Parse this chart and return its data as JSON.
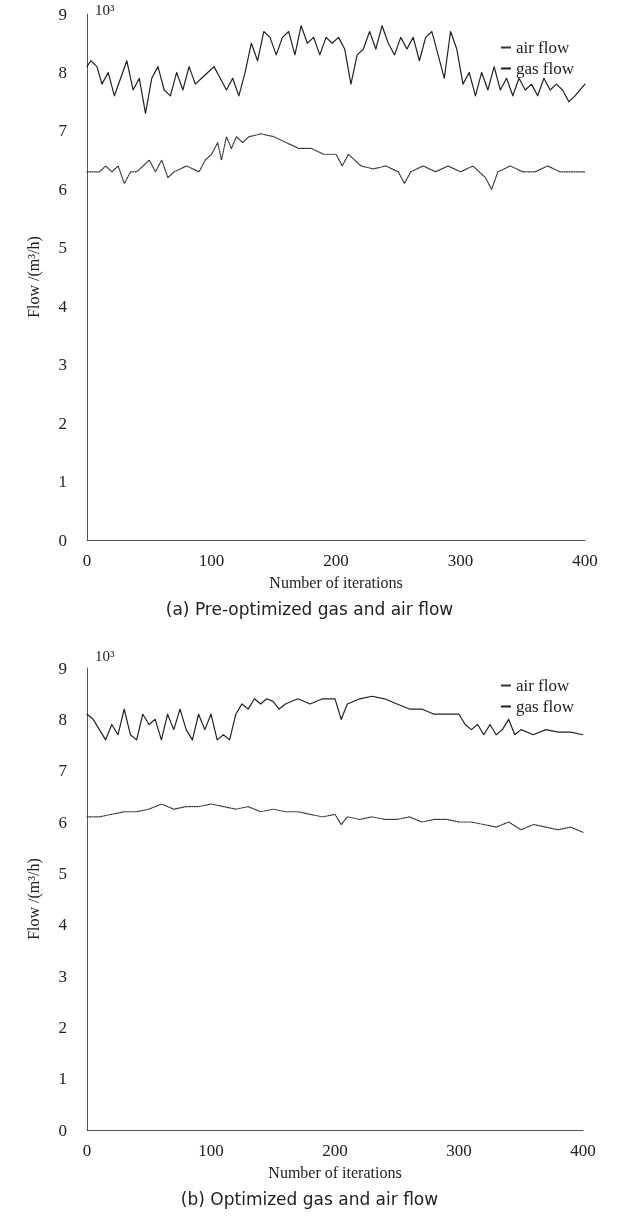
{
  "chart_data": [
    {
      "type": "line",
      "title": "(a) Pre-optimized gas and air flow",
      "xlabel": "Number of iterations",
      "ylabel": "Flow /(m³/h)",
      "annotations": [
        "10³"
      ],
      "xlim": [
        0,
        400
      ],
      "xticks": [
        0,
        100,
        200,
        300,
        400
      ],
      "ylim": [
        0,
        9
      ],
      "yticks": [
        0,
        1,
        2,
        3,
        4,
        5,
        6,
        7,
        8,
        9
      ],
      "grid": false,
      "legend": "top right",
      "marker": "none",
      "series": [
        {
          "name": "air flow",
          "color": "#333333",
          "line_style": "dotted",
          "x": [
            0,
            10,
            15,
            20,
            25,
            30,
            35,
            40,
            45,
            50,
            55,
            60,
            65,
            70,
            80,
            90,
            95,
            100,
            105,
            108,
            112,
            116,
            120,
            125,
            130,
            140,
            150,
            160,
            170,
            180,
            190,
            200,
            205,
            210,
            220,
            230,
            240,
            250,
            255,
            260,
            270,
            280,
            290,
            300,
            310,
            320,
            325,
            330,
            340,
            350,
            360,
            370,
            380,
            390,
            400
          ],
          "values": [
            6.3,
            6.3,
            6.4,
            6.3,
            6.4,
            6.1,
            6.3,
            6.3,
            6.4,
            6.5,
            6.3,
            6.5,
            6.2,
            6.3,
            6.4,
            6.3,
            6.5,
            6.6,
            6.8,
            6.5,
            6.9,
            6.7,
            6.9,
            6.8,
            6.9,
            6.95,
            6.9,
            6.8,
            6.7,
            6.7,
            6.6,
            6.6,
            6.4,
            6.6,
            6.4,
            6.35,
            6.4,
            6.3,
            6.1,
            6.3,
            6.4,
            6.3,
            6.4,
            6.3,
            6.4,
            6.2,
            6.0,
            6.3,
            6.4,
            6.3,
            6.3,
            6.4,
            6.3,
            6.3,
            6.3
          ]
        },
        {
          "name": "gas flow",
          "color": "#222222",
          "line_style": "solid",
          "x": [
            0,
            3,
            8,
            12,
            17,
            22,
            27,
            32,
            37,
            42,
            47,
            52,
            57,
            62,
            67,
            72,
            77,
            82,
            87,
            92,
            97,
            102,
            107,
            112,
            117,
            122,
            127,
            132,
            137,
            142,
            147,
            152,
            157,
            162,
            167,
            172,
            177,
            182,
            187,
            192,
            197,
            202,
            207,
            212,
            217,
            222,
            227,
            232,
            237,
            242,
            247,
            252,
            257,
            262,
            267,
            272,
            277,
            282,
            287,
            292,
            297,
            302,
            307,
            312,
            317,
            322,
            327,
            332,
            337,
            342,
            347,
            352,
            357,
            362,
            367,
            372,
            377,
            382,
            387,
            392,
            396,
            400
          ],
          "values": [
            8.1,
            8.2,
            8.1,
            7.8,
            8.0,
            7.6,
            7.9,
            8.2,
            7.7,
            7.9,
            7.3,
            7.9,
            8.1,
            7.7,
            7.6,
            8.0,
            7.7,
            8.1,
            7.8,
            7.9,
            8.0,
            8.1,
            7.9,
            7.7,
            7.9,
            7.6,
            8.0,
            8.5,
            8.2,
            8.7,
            8.6,
            8.3,
            8.6,
            8.7,
            8.3,
            8.8,
            8.5,
            8.6,
            8.3,
            8.6,
            8.5,
            8.6,
            8.4,
            7.8,
            8.3,
            8.4,
            8.7,
            8.4,
            8.8,
            8.5,
            8.3,
            8.6,
            8.4,
            8.6,
            8.2,
            8.6,
            8.7,
            8.3,
            7.9,
            8.7,
            8.4,
            7.8,
            8.0,
            7.6,
            8.0,
            7.7,
            8.1,
            7.7,
            7.9,
            7.6,
            7.9,
            7.7,
            7.8,
            7.6,
            7.9,
            7.7,
            7.8,
            7.7,
            7.5,
            7.6,
            7.7,
            7.8
          ]
        }
      ]
    },
    {
      "type": "line",
      "title": "(b) Optimized gas and air flow",
      "xlabel": "Number of iterations",
      "ylabel": "Flow /(m³/h)",
      "annotations": [
        "10³"
      ],
      "xlim": [
        0,
        400
      ],
      "xticks": [
        0,
        100,
        200,
        300,
        400
      ],
      "ylim": [
        0,
        9
      ],
      "yticks": [
        0,
        1,
        2,
        3,
        4,
        5,
        6,
        7,
        8,
        9
      ],
      "grid": false,
      "legend": "top right",
      "marker": "none",
      "series": [
        {
          "name": "air flow",
          "color": "#333333",
          "line_style": "dotted",
          "x": [
            0,
            10,
            20,
            30,
            40,
            50,
            60,
            70,
            80,
            90,
            100,
            110,
            120,
            130,
            140,
            150,
            160,
            170,
            180,
            190,
            200,
            205,
            210,
            220,
            230,
            240,
            250,
            260,
            270,
            280,
            290,
            300,
            310,
            320,
            330,
            340,
            350,
            360,
            370,
            380,
            390,
            400
          ],
          "values": [
            6.1,
            6.1,
            6.15,
            6.2,
            6.2,
            6.25,
            6.35,
            6.25,
            6.3,
            6.3,
            6.35,
            6.3,
            6.25,
            6.3,
            6.2,
            6.25,
            6.2,
            6.2,
            6.15,
            6.1,
            6.15,
            5.95,
            6.1,
            6.05,
            6.1,
            6.05,
            6.05,
            6.1,
            6.0,
            6.05,
            6.05,
            6.0,
            6.0,
            5.95,
            5.9,
            6.0,
            5.85,
            5.95,
            5.9,
            5.85,
            5.9,
            5.8
          ]
        },
        {
          "name": "gas flow",
          "color": "#222222",
          "line_style": "solid",
          "x": [
            0,
            5,
            10,
            15,
            20,
            25,
            30,
            35,
            40,
            45,
            50,
            55,
            60,
            65,
            70,
            75,
            80,
            85,
            90,
            95,
            100,
            105,
            110,
            115,
            120,
            125,
            130,
            135,
            140,
            145,
            150,
            155,
            160,
            170,
            180,
            190,
            200,
            205,
            210,
            220,
            230,
            240,
            250,
            260,
            270,
            280,
            290,
            300,
            305,
            310,
            315,
            320,
            325,
            330,
            335,
            340,
            345,
            350,
            360,
            370,
            380,
            390,
            400
          ],
          "values": [
            8.1,
            8.0,
            7.8,
            7.6,
            7.9,
            7.7,
            8.2,
            7.7,
            7.6,
            8.1,
            7.9,
            8.0,
            7.6,
            8.1,
            7.8,
            8.2,
            7.8,
            7.6,
            8.1,
            7.8,
            8.1,
            7.6,
            7.7,
            7.6,
            8.1,
            8.3,
            8.2,
            8.4,
            8.3,
            8.4,
            8.35,
            8.2,
            8.3,
            8.4,
            8.3,
            8.4,
            8.4,
            8.0,
            8.3,
            8.4,
            8.45,
            8.4,
            8.3,
            8.2,
            8.2,
            8.1,
            8.1,
            8.1,
            7.9,
            7.8,
            7.9,
            7.7,
            7.9,
            7.7,
            7.8,
            8.0,
            7.7,
            7.8,
            7.7,
            7.8,
            7.75,
            7.75,
            7.7
          ]
        }
      ]
    }
  ]
}
